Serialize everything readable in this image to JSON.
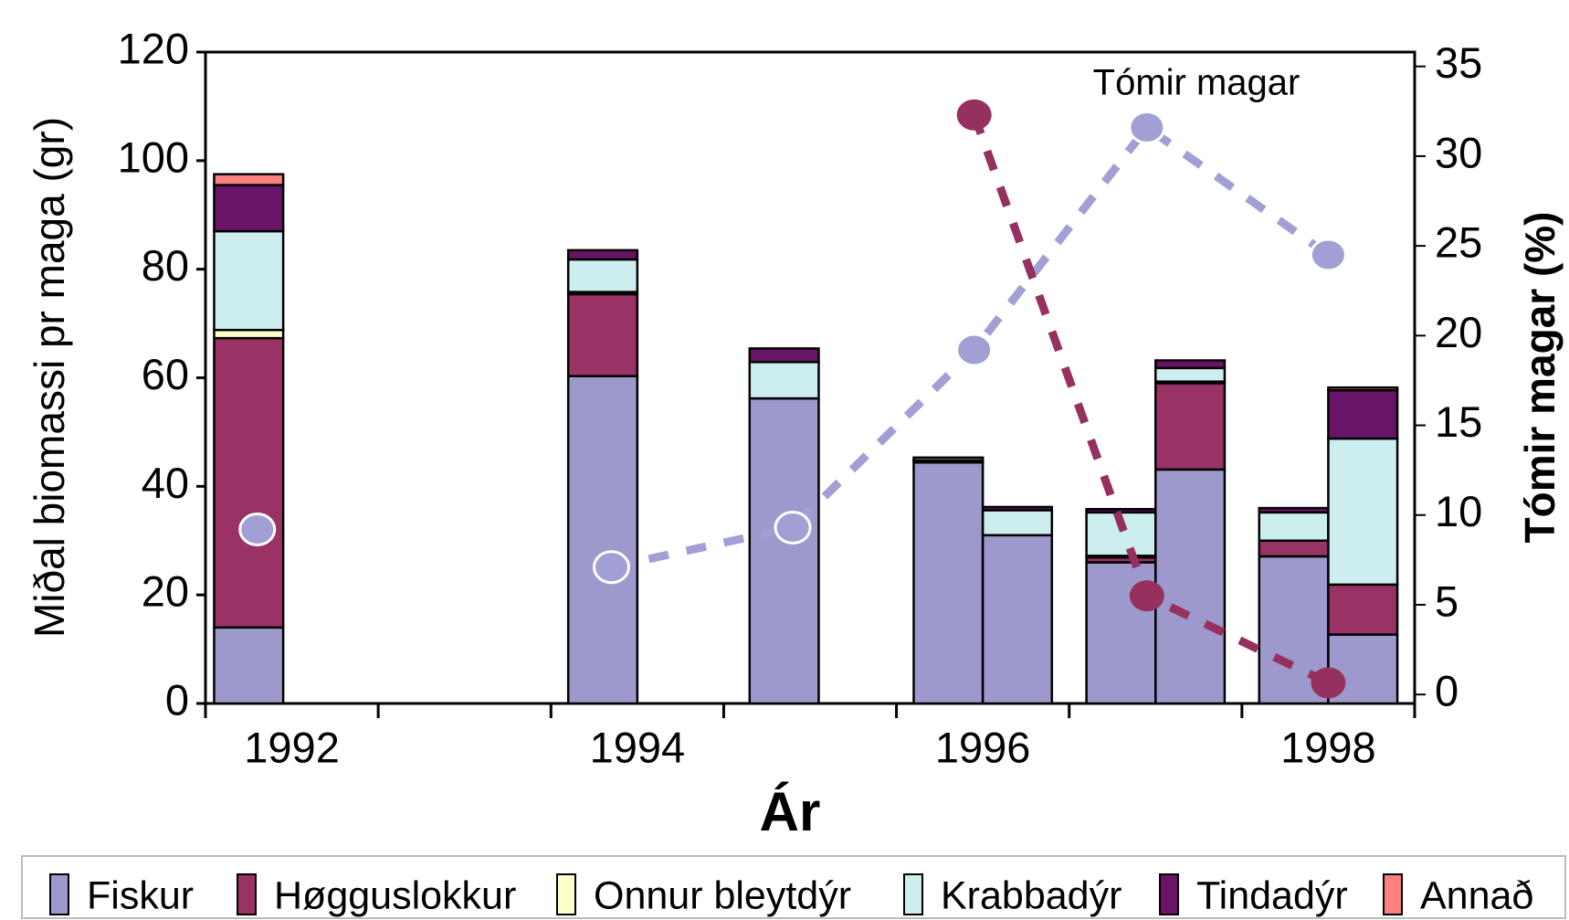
{
  "chart_data": {
    "type": "bar",
    "stacked": true,
    "xlabel": "Ár",
    "ylabel": "Miðal biomassi pr maga  (gr)",
    "y2label": "Tómir magar (%)",
    "annotation": "Tómir magar",
    "xlim": [
      1991.5,
      1998.5
    ],
    "xticks": [
      1992,
      1994,
      1996,
      1998
    ],
    "ylim": [
      0,
      120
    ],
    "yticks": [
      0,
      20,
      40,
      60,
      80,
      100,
      120
    ],
    "y2lim": [
      -0.5,
      35.8
    ],
    "y2ticks": [
      0,
      5,
      10,
      15,
      20,
      25,
      30,
      35
    ],
    "legend": "bottom",
    "x": [
      1991.75,
      1993.8,
      1994.85,
      1995.8,
      1996.2,
      1996.8,
      1997.2,
      1997.8,
      1998.2
    ],
    "series": [
      {
        "name": "Fiskur",
        "color": "#9d99cc",
        "values": [
          14.0,
          60.3,
          56.2,
          44.4,
          31.0,
          26.0,
          43.1,
          27.1,
          12.7
        ]
      },
      {
        "name": "Høgguslokkur",
        "color": "#993366",
        "values": [
          53.3,
          15.1,
          0,
          0,
          0,
          0.9,
          15.9,
          2.9,
          9.2
        ]
      },
      {
        "name": "Onnur bleytdýr",
        "color": "#ffffcc",
        "values": [
          1.5,
          0.4,
          0,
          0.4,
          0,
          0.3,
          0.3,
          0,
          0
        ]
      },
      {
        "name": "Krabbadýr",
        "color": "#cceeee",
        "values": [
          18.2,
          6.0,
          6.7,
          0.5,
          4.6,
          8.0,
          2.5,
          5.2,
          26.9
        ]
      },
      {
        "name": "Tindadýr",
        "color": "#6a1468",
        "values": [
          8.5,
          1.7,
          2.5,
          0,
          0.6,
          0.6,
          1.4,
          0.8,
          8.9
        ]
      },
      {
        "name": "Annað",
        "color": "#ff8080",
        "values": [
          2.0,
          0,
          0,
          0,
          0,
          0,
          0,
          0,
          0.5
        ]
      }
    ],
    "lines": [
      {
        "type": "line",
        "axis": "y2",
        "color": "#a29fd4",
        "marker_edge": "#ffffff",
        "x": [
          1991.8,
          1993,
          1993.85,
          1994.9,
          1995.95,
          1996.95,
          1998.0
        ],
        "values": [
          9.2,
          null,
          7.1,
          9.3,
          19.2,
          31.6,
          24.5
        ]
      },
      {
        "type": "line",
        "axis": "y2",
        "color": "#96305e",
        "x": [
          1995.95,
          1996.95,
          1998.0
        ],
        "values": [
          32.3,
          5.5,
          0.65
        ]
      }
    ]
  }
}
